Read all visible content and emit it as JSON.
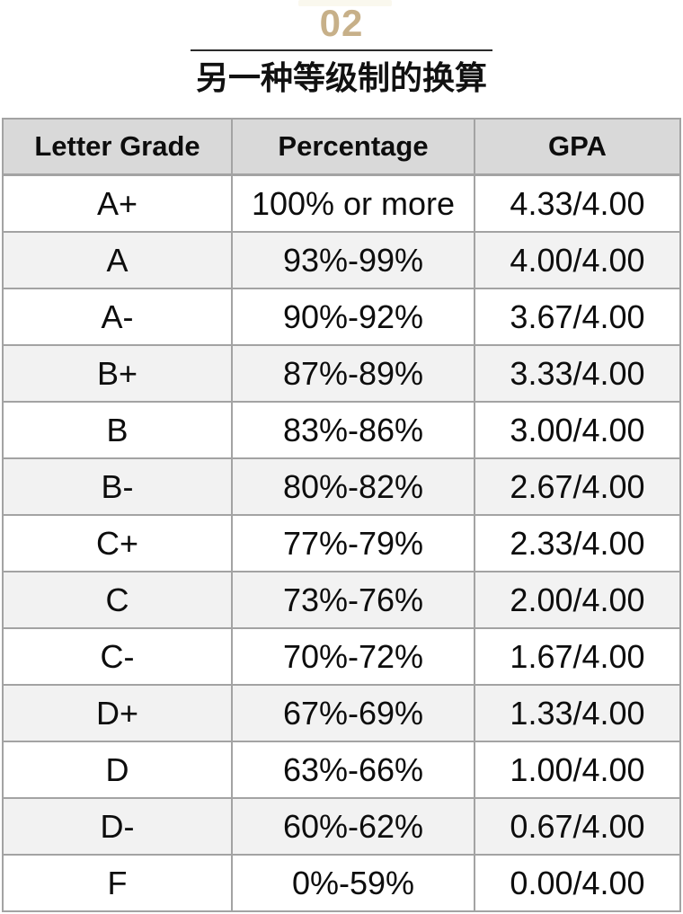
{
  "header": {
    "section_number": "02",
    "section_title": "另一种等级制的换算"
  },
  "table": {
    "headers": [
      "Letter Grade",
      "Percentage",
      "GPA"
    ],
    "rows": [
      {
        "letter": "A+",
        "percentage": "100% or more",
        "gpa": "4.33/4.00"
      },
      {
        "letter": "A",
        "percentage": "93%-99%",
        "gpa": "4.00/4.00"
      },
      {
        "letter": "A-",
        "percentage": "90%-92%",
        "gpa": "3.67/4.00"
      },
      {
        "letter": "B+",
        "percentage": "87%-89%",
        "gpa": "3.33/4.00"
      },
      {
        "letter": "B",
        "percentage": "83%-86%",
        "gpa": "3.00/4.00"
      },
      {
        "letter": "B-",
        "percentage": "80%-82%",
        "gpa": "2.67/4.00"
      },
      {
        "letter": "C+",
        "percentage": "77%-79%",
        "gpa": "2.33/4.00"
      },
      {
        "letter": "C",
        "percentage": "73%-76%",
        "gpa": "2.00/4.00"
      },
      {
        "letter": "C-",
        "percentage": "70%-72%",
        "gpa": "1.67/4.00"
      },
      {
        "letter": "D+",
        "percentage": "67%-69%",
        "gpa": "1.33/4.00"
      },
      {
        "letter": "D",
        "percentage": "63%-66%",
        "gpa": "1.00/4.00"
      },
      {
        "letter": "D-",
        "percentage": "60%-62%",
        "gpa": "0.67/4.00"
      },
      {
        "letter": "F",
        "percentage": "0%-59%",
        "gpa": "0.00/4.00"
      }
    ]
  },
  "colors": {
    "accent_gold": "#C7B089",
    "divider": "#2B2B2B",
    "header_row_bg": "#D9D9D9",
    "alt_row_bg": "#F2F2F2",
    "table_border": "#A3A3A3",
    "text": "#0D0D0D"
  }
}
